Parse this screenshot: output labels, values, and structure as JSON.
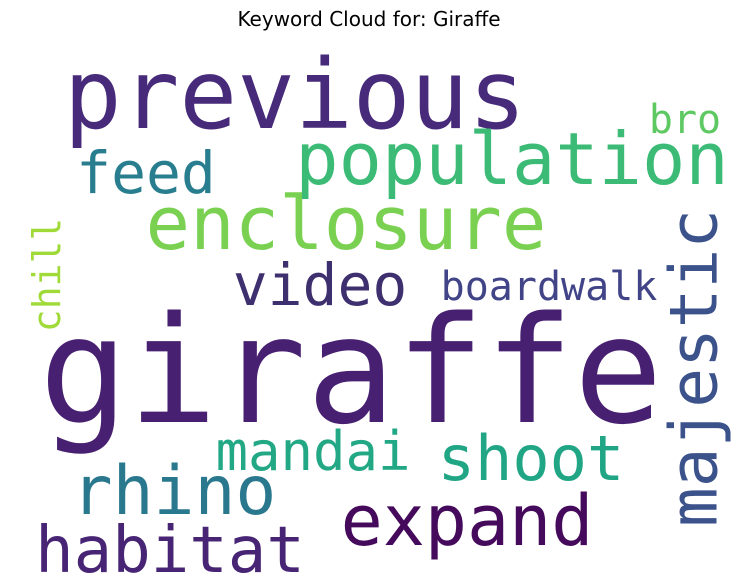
{
  "chart_data": {
    "type": "wordcloud",
    "title": "Keyword Cloud for: Giraffe",
    "words": [
      {
        "text": "giraffe",
        "weight": 1.0,
        "color": "#482071"
      },
      {
        "text": "previous",
        "weight": 0.78,
        "color": "#472A7A"
      },
      {
        "text": "enclosure",
        "weight": 0.62,
        "color": "#7AD151"
      },
      {
        "text": "population",
        "weight": 0.58,
        "color": "#3BBB75"
      },
      {
        "text": "expand",
        "weight": 0.56,
        "color": "#450A5B"
      },
      {
        "text": "rhino",
        "weight": 0.54,
        "color": "#2A788E"
      },
      {
        "text": "majestic",
        "weight": 0.53,
        "color": "#3B528B"
      },
      {
        "text": "habitat",
        "weight": 0.52,
        "color": "#482475"
      },
      {
        "text": "shoot",
        "weight": 0.5,
        "color": "#21A685"
      },
      {
        "text": "feed",
        "weight": 0.48,
        "color": "#287D8E"
      },
      {
        "text": "video",
        "weight": 0.48,
        "color": "#3E2F6E"
      },
      {
        "text": "mandai",
        "weight": 0.46,
        "color": "#22A884"
      },
      {
        "text": "boardwalk",
        "weight": 0.34,
        "color": "#414487"
      },
      {
        "text": "bro",
        "weight": 0.33,
        "color": "#5EC962"
      },
      {
        "text": "chill",
        "weight": 0.3,
        "color": "#A0DA39"
      }
    ]
  }
}
